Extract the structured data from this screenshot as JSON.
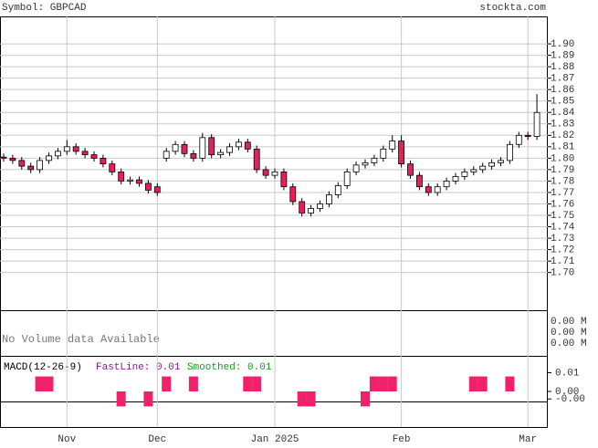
{
  "header": {
    "symbol": "Symbol: GBPCAD",
    "site": "stockta.com"
  },
  "chart_data": [
    {
      "type": "candlestick",
      "categories": [
        null,
        null,
        null,
        null,
        null,
        null,
        null,
        "Nov",
        null,
        null,
        null,
        null,
        null,
        null,
        null,
        null,
        null,
        "Dec",
        null,
        null,
        null,
        null,
        null,
        null,
        null,
        null,
        null,
        null,
        null,
        null,
        "Jan 2025",
        null,
        null,
        null,
        null,
        null,
        null,
        null,
        null,
        null,
        null,
        null,
        null,
        null,
        "Feb",
        null,
        null,
        null,
        null,
        null,
        null,
        null,
        null,
        null,
        null,
        null,
        null,
        null,
        "Mar",
        null
      ],
      "open": [
        1.801,
        1.8,
        1.798,
        1.793,
        1.79,
        1.798,
        1.802,
        1.806,
        1.81,
        1.806,
        1.803,
        1.8,
        1.795,
        1.788,
        1.78,
        1.781,
        1.778,
        1.775,
        1.8,
        1.806,
        1.812,
        1.804,
        1.8,
        1.818,
        1.803,
        1.805,
        1.81,
        1.814,
        1.808,
        1.79,
        1.785,
        1.788,
        1.775,
        1.762,
        1.752,
        1.756,
        1.76,
        1.768,
        1.776,
        1.788,
        1.794,
        1.796,
        1.8,
        1.808,
        1.815,
        1.795,
        1.785,
        1.775,
        1.77,
        1.775,
        1.78,
        1.784,
        1.788,
        1.79,
        1.793,
        1.796,
        1.798,
        1.812,
        1.82,
        1.819
      ],
      "high": [
        1.804,
        1.803,
        1.801,
        1.796,
        1.801,
        1.805,
        1.809,
        1.816,
        1.813,
        1.809,
        1.806,
        1.803,
        1.798,
        1.791,
        1.784,
        1.784,
        1.781,
        1.778,
        1.809,
        1.815,
        1.815,
        1.807,
        1.822,
        1.821,
        1.808,
        1.813,
        1.817,
        1.817,
        1.811,
        1.793,
        1.791,
        1.791,
        1.778,
        1.765,
        1.759,
        1.763,
        1.771,
        1.779,
        1.791,
        1.797,
        1.799,
        1.803,
        1.811,
        1.82,
        1.82,
        1.798,
        1.788,
        1.778,
        1.778,
        1.783,
        1.787,
        1.791,
        1.793,
        1.796,
        1.799,
        1.801,
        1.815,
        1.823,
        1.823,
        1.856
      ],
      "low": [
        1.797,
        1.795,
        1.79,
        1.787,
        1.787,
        1.795,
        1.799,
        1.803,
        1.803,
        1.8,
        1.797,
        1.792,
        1.785,
        1.777,
        1.777,
        1.775,
        1.769,
        1.767,
        1.797,
        1.803,
        1.801,
        1.797,
        1.797,
        1.8,
        1.8,
        1.802,
        1.807,
        1.805,
        1.787,
        1.782,
        1.782,
        1.772,
        1.759,
        1.749,
        1.749,
        1.753,
        1.757,
        1.765,
        1.773,
        1.785,
        1.791,
        1.793,
        1.797,
        1.805,
        1.792,
        1.782,
        1.772,
        1.767,
        1.767,
        1.772,
        1.777,
        1.781,
        1.785,
        1.787,
        1.79,
        1.793,
        1.795,
        1.809,
        1.816,
        1.816
      ],
      "close": [
        1.8,
        1.798,
        1.793,
        1.79,
        1.798,
        1.802,
        1.806,
        1.81,
        1.806,
        1.803,
        1.8,
        1.795,
        1.788,
        1.78,
        1.781,
        1.778,
        1.772,
        1.77,
        1.806,
        1.812,
        1.804,
        1.8,
        1.818,
        1.803,
        1.805,
        1.81,
        1.814,
        1.808,
        1.79,
        1.785,
        1.788,
        1.775,
        1.762,
        1.752,
        1.756,
        1.76,
        1.768,
        1.776,
        1.788,
        1.794,
        1.796,
        1.8,
        1.808,
        1.815,
        1.795,
        1.785,
        1.775,
        1.77,
        1.775,
        1.78,
        1.784,
        1.788,
        1.79,
        1.793,
        1.796,
        1.798,
        1.812,
        1.82,
        1.819,
        1.84
      ],
      "up_color": "#ffffff",
      "down_color": "#e8205a",
      "ylim": [
        1.667,
        1.924
      ],
      "yticks": [
        {
          "value": 1.7,
          "label": "1.70"
        },
        1.71,
        1.72,
        1.73,
        1.74,
        1.75,
        1.76,
        1.77,
        1.78,
        1.79,
        {
          "value": 1.8,
          "label": "1.80"
        },
        1.81,
        1.82,
        1.83,
        1.84,
        1.85,
        1.86,
        1.87,
        1.88,
        1.89,
        {
          "value": 1.9,
          "label": "1.90"
        }
      ],
      "grid": true
    },
    {
      "type": "volume",
      "message": "No Volume data Available",
      "axis_labels": [
        "0.00 M",
        "0.00 M",
        "0.00 M"
      ]
    },
    {
      "type": "macd",
      "title": "MACD(12-26-9)",
      "fast_label": "FastLine: 0.01",
      "smooth_label": "Smoothed: 0.01",
      "fast_color": "#8b1a9b",
      "smooth_color": "#1a9b1a",
      "color": "#f0206a",
      "values": [
        0,
        0,
        0,
        0,
        0.008,
        0.008,
        0,
        0,
        0,
        0,
        0,
        0,
        0,
        -0.008,
        0,
        0,
        -0.008,
        0,
        0.008,
        0,
        0,
        0.008,
        0,
        0,
        0,
        0,
        0,
        0.008,
        0.008,
        0,
        0,
        0,
        0,
        -0.008,
        -0.008,
        0,
        0,
        0,
        0,
        0,
        -0.008,
        0.008,
        0.008,
        0.008,
        0,
        0,
        0,
        0,
        0,
        0,
        0,
        0,
        0.008,
        0.008,
        0,
        0,
        0.008,
        0,
        0,
        0
      ],
      "ylim": [
        -0.019,
        0.019
      ],
      "yticks": [
        0.01,
        {
          "value": 0,
          "label": "0.00"
        },
        {
          "value": -0.004,
          "label": "-0.00"
        }
      ]
    }
  ]
}
